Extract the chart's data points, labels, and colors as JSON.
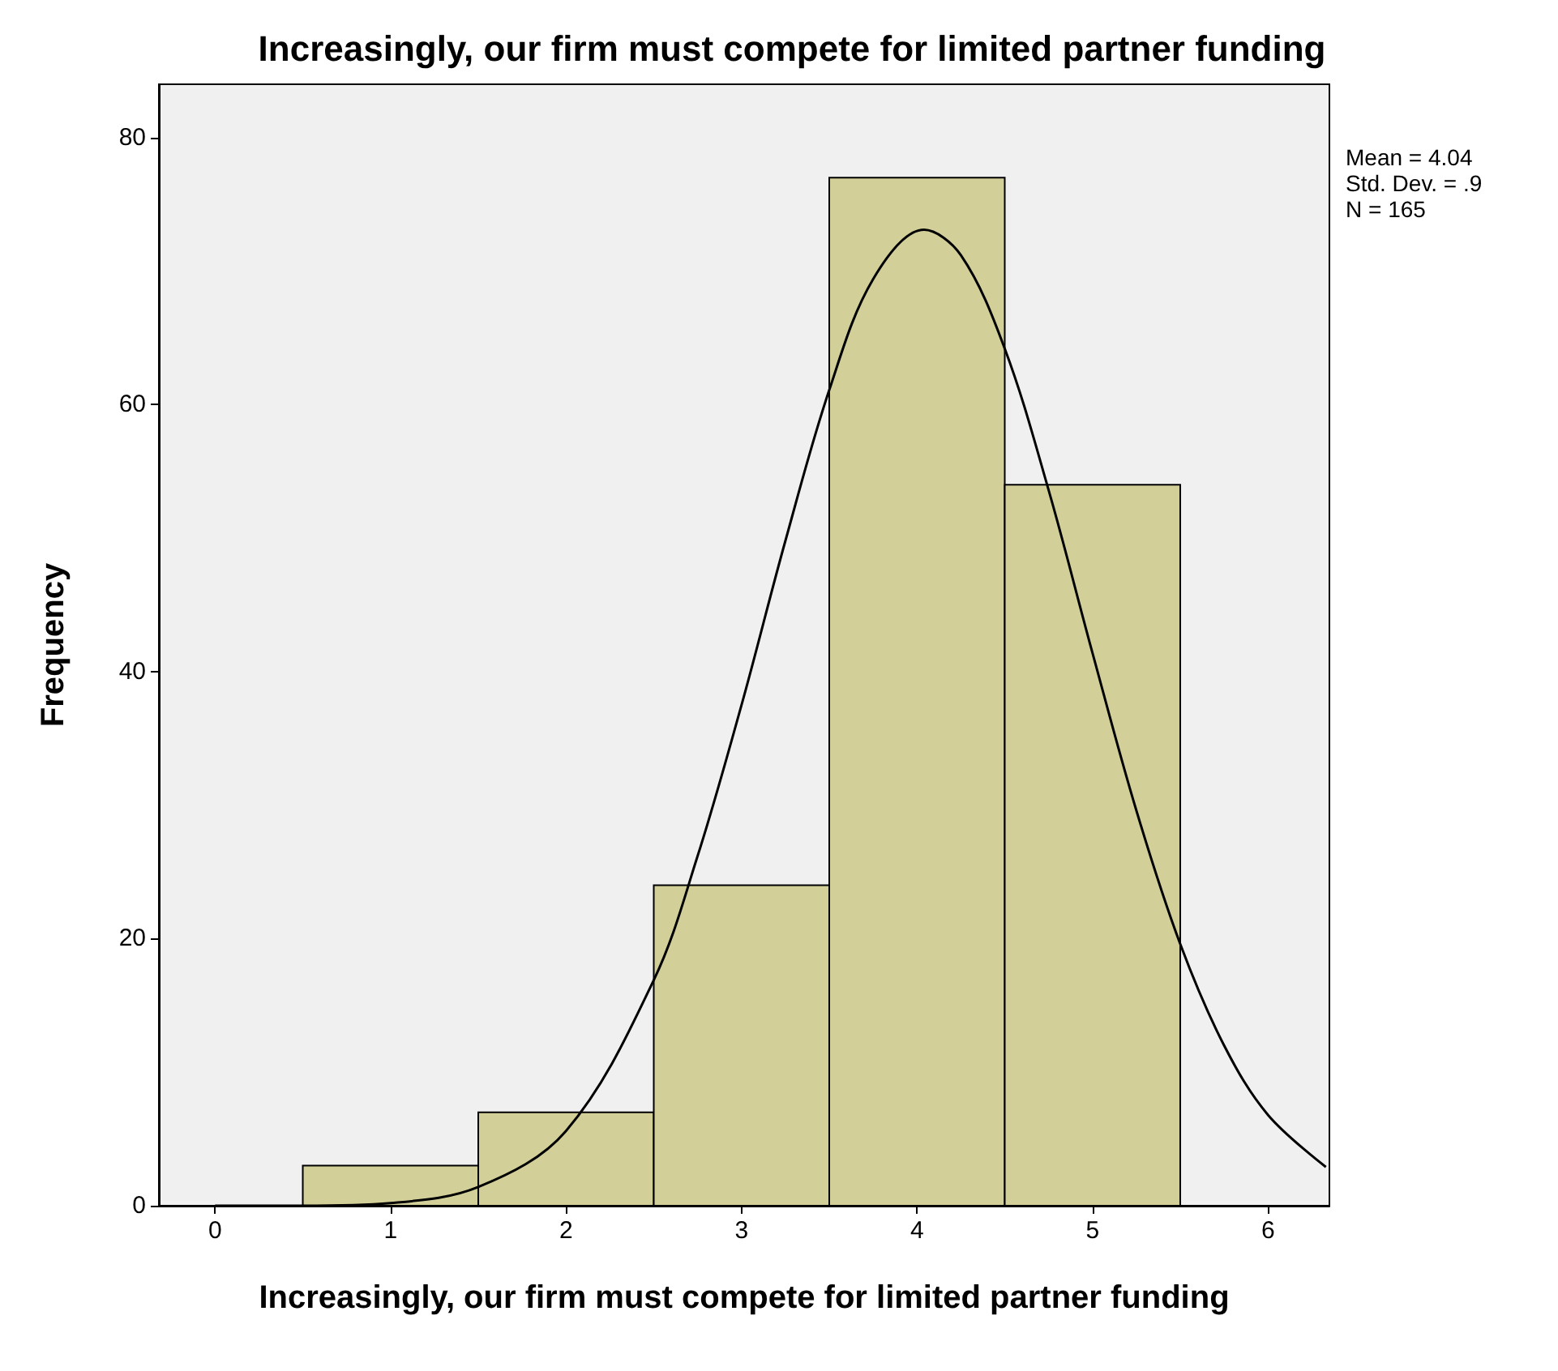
{
  "chart_data": {
    "type": "histogram",
    "title": "Increasingly, our firm must compete for limited partner funding",
    "xlabel": "Increasingly, our firm must compete for limited partner funding",
    "ylabel": "Frequency",
    "bins": [
      0.5,
      1.5,
      2.5,
      3.5,
      4.5,
      5.5
    ],
    "values": [
      3,
      7,
      24,
      77,
      54
    ],
    "color": "#d3cf99",
    "series": [
      {
        "type": "line",
        "color": "#000000",
        "marker": "none",
        "line_style": "solid",
        "x": [
          0,
          0.5,
          1,
          1.5,
          2,
          2.5,
          2.75,
          3,
          3.25,
          3.5,
          3.75,
          4.04,
          4.25,
          4.5,
          4.75,
          5,
          5.25,
          5.5,
          5.75,
          6,
          6.33
        ],
        "values": [
          0,
          0,
          0.2,
          1.4,
          5.6,
          16.9,
          26.2,
          37.5,
          49.8,
          61.1,
          69.4,
          73.1,
          71.2,
          64.2,
          53.6,
          41.4,
          29.6,
          19.6,
          12,
          6.8,
          2.9
        ]
      }
    ],
    "xlim": [
      -0.32,
      6.35
    ],
    "xticks": [
      0,
      1,
      2,
      3,
      4,
      5,
      6
    ],
    "ylim": [
      0,
      84
    ],
    "yticks": [
      0,
      20,
      40,
      60,
      80
    ],
    "grid": false,
    "annotations": [
      "Mean = 4.04",
      "Std. Dev. = .9",
      "N = 165"
    ]
  }
}
